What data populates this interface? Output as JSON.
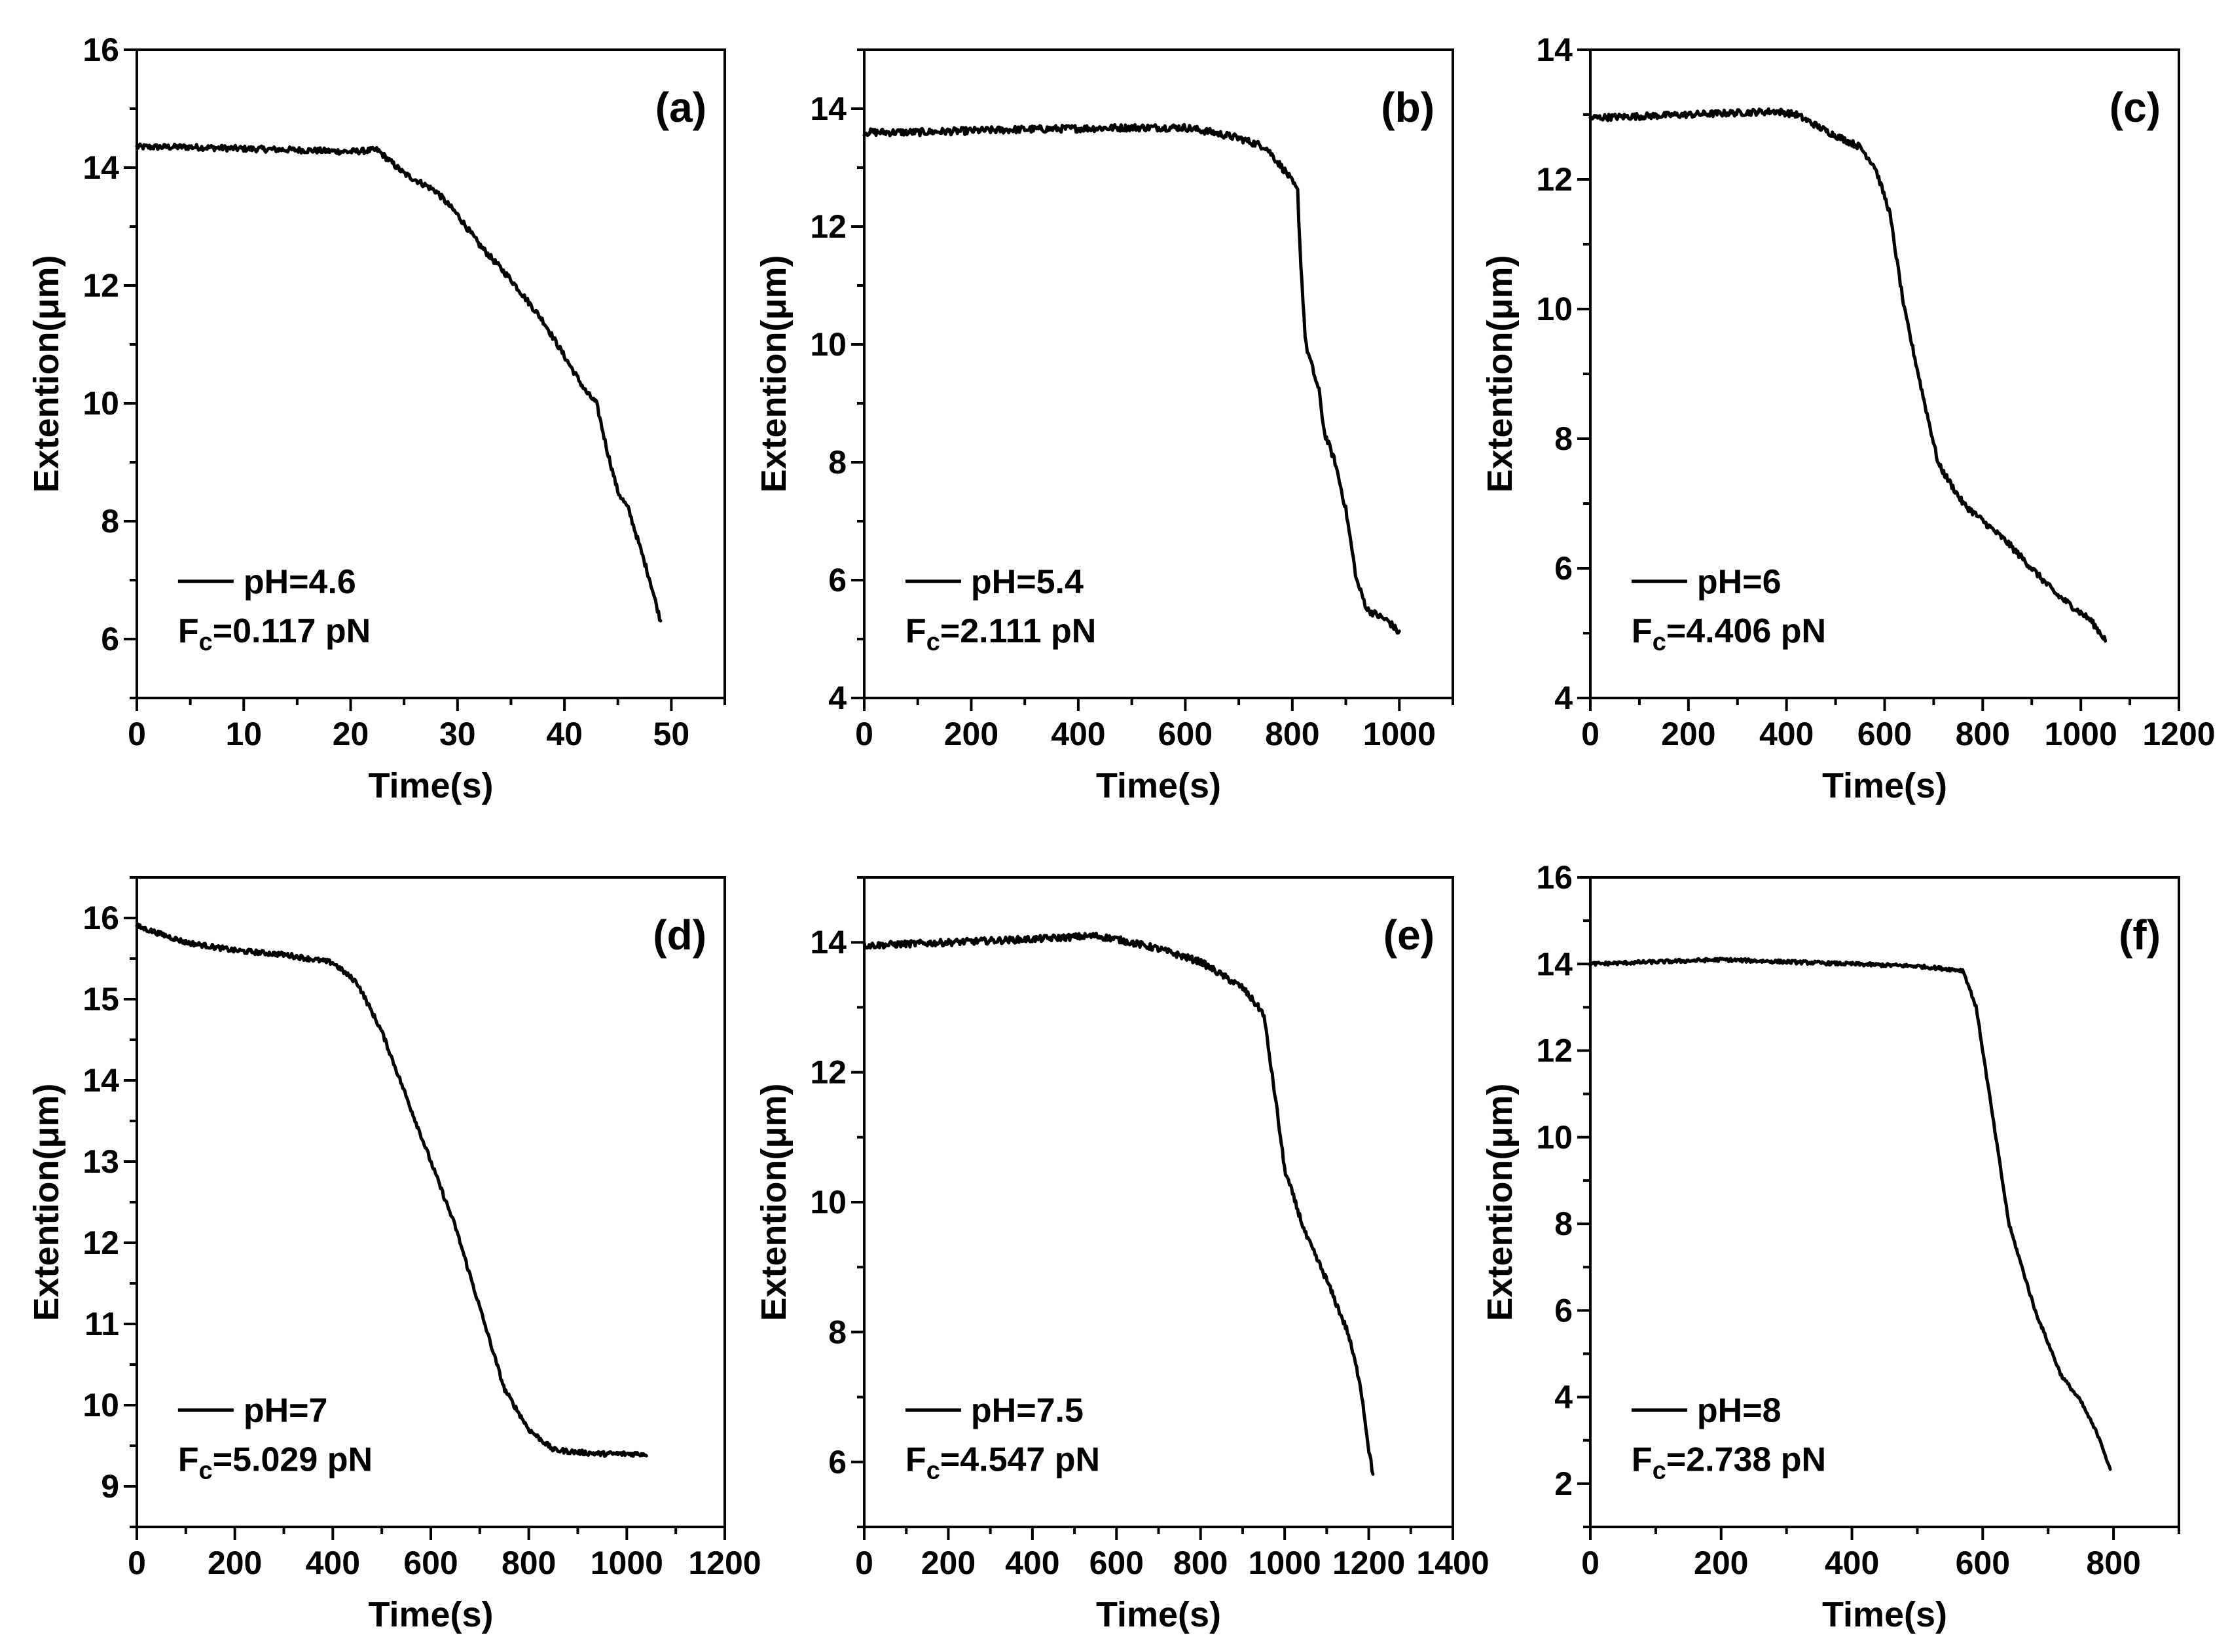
{
  "chart_data": [
    {
      "type": "line",
      "panel_label": "(a)",
      "xlabel": "Time(s)",
      "ylabel": "Extention(μm)",
      "xlim": [
        0,
        55
      ],
      "ylim": [
        5,
        16
      ],
      "xticks": [
        0,
        10,
        20,
        30,
        40,
        50
      ],
      "yticks": [
        6,
        8,
        10,
        12,
        14,
        16
      ],
      "legend": {
        "series": "pH=4.6",
        "force_prefix": "F",
        "force_sub": "c",
        "force_value": "=0.117 pN"
      },
      "series": [
        {
          "name": "pH=4.6",
          "noise": 0.05,
          "points": [
            [
              0,
              14.35
            ],
            [
              5,
              14.35
            ],
            [
              10,
              14.32
            ],
            [
              15,
              14.3
            ],
            [
              20,
              14.27
            ],
            [
              22.5,
              14.3
            ],
            [
              25,
              13.9
            ],
            [
              28,
              13.6
            ],
            [
              30,
              13.2
            ],
            [
              32,
              12.7
            ],
            [
              35,
              12.1
            ],
            [
              38,
              11.4
            ],
            [
              40,
              10.8
            ],
            [
              42,
              10.2
            ],
            [
              43,
              10.0
            ],
            [
              44,
              9.2
            ],
            [
              45,
              8.5
            ],
            [
              46,
              8.2
            ],
            [
              47,
              7.6
            ],
            [
              48,
              7.0
            ],
            [
              49,
              6.3
            ]
          ]
        }
      ]
    },
    {
      "type": "line",
      "panel_label": "(b)",
      "xlabel": "Time(s)",
      "ylabel": "Extention(μm)",
      "xlim": [
        0,
        1100
      ],
      "ylim": [
        4,
        15
      ],
      "xticks": [
        0,
        200,
        400,
        600,
        800,
        1000
      ],
      "yticks": [
        4,
        6,
        8,
        10,
        12,
        14
      ],
      "legend": {
        "series": "pH=5.4",
        "force_prefix": "F",
        "force_sub": "c",
        "force_value": "=2.111 pN"
      },
      "series": [
        {
          "name": "pH=5.4",
          "noise": 0.06,
          "points": [
            [
              0,
              13.6
            ],
            [
              100,
              13.6
            ],
            [
              300,
              13.65
            ],
            [
              500,
              13.68
            ],
            [
              600,
              13.68
            ],
            [
              650,
              13.6
            ],
            [
              700,
              13.5
            ],
            [
              750,
              13.35
            ],
            [
              790,
              12.9
            ],
            [
              810,
              12.6
            ],
            [
              815,
              11.5
            ],
            [
              825,
              10.0
            ],
            [
              850,
              9.2
            ],
            [
              860,
              8.5
            ],
            [
              880,
              8.0
            ],
            [
              900,
              7.2
            ],
            [
              920,
              6.0
            ],
            [
              940,
              5.5
            ],
            [
              980,
              5.3
            ],
            [
              1000,
              5.1
            ]
          ]
        }
      ]
    },
    {
      "type": "line",
      "panel_label": "(c)",
      "xlabel": "Time(s)",
      "ylabel": "Extention(μm)",
      "xlim": [
        0,
        1200
      ],
      "ylim": [
        4,
        14
      ],
      "xticks": [
        0,
        200,
        400,
        600,
        800,
        1000,
        1200
      ],
      "yticks": [
        4,
        6,
        8,
        10,
        12,
        14
      ],
      "legend": {
        "series": "pH=6",
        "force_prefix": "F",
        "force_sub": "c",
        "force_value": "=4.406 pN"
      },
      "series": [
        {
          "name": "pH=6",
          "noise": 0.05,
          "points": [
            [
              0,
              12.95
            ],
            [
              200,
              13.0
            ],
            [
              380,
              13.05
            ],
            [
              420,
              13.0
            ],
            [
              480,
              12.75
            ],
            [
              550,
              12.5
            ],
            [
              580,
              12.2
            ],
            [
              610,
              11.5
            ],
            [
              640,
              10.0
            ],
            [
              680,
              8.6
            ],
            [
              710,
              7.6
            ],
            [
              760,
              7.0
            ],
            [
              850,
              6.4
            ],
            [
              950,
              5.6
            ],
            [
              1020,
              5.2
            ],
            [
              1050,
              4.9
            ]
          ]
        }
      ]
    },
    {
      "type": "line",
      "panel_label": "(d)",
      "xlabel": "Time(s)",
      "ylabel": "Extention(μm)",
      "xlim": [
        0,
        1200
      ],
      "ylim": [
        8.5,
        16.5
      ],
      "xticks": [
        0,
        200,
        400,
        600,
        800,
        1000,
        1200
      ],
      "yticks": [
        9,
        10,
        11,
        12,
        13,
        14,
        15,
        16
      ],
      "legend": {
        "series": "pH=7",
        "force_prefix": "F",
        "force_sub": "c",
        "force_value": "=5.029 pN"
      },
      "series": [
        {
          "name": "pH=7",
          "noise": 0.03,
          "points": [
            [
              0,
              15.9
            ],
            [
              100,
              15.7
            ],
            [
              200,
              15.6
            ],
            [
              300,
              15.55
            ],
            [
              400,
              15.45
            ],
            [
              450,
              15.2
            ],
            [
              500,
              14.6
            ],
            [
              550,
              13.8
            ],
            [
              600,
              13.0
            ],
            [
              650,
              12.2
            ],
            [
              700,
              11.2
            ],
            [
              750,
              10.2
            ],
            [
              800,
              9.7
            ],
            [
              850,
              9.45
            ],
            [
              900,
              9.42
            ],
            [
              950,
              9.4
            ],
            [
              1000,
              9.4
            ],
            [
              1040,
              9.4
            ]
          ]
        }
      ]
    },
    {
      "type": "line",
      "panel_label": "(e)",
      "xlabel": "Time(s)",
      "ylabel": "Extention(μm)",
      "xlim": [
        0,
        1400
      ],
      "ylim": [
        5,
        15
      ],
      "xticks": [
        0,
        200,
        400,
        600,
        800,
        1000,
        1200,
        1400
      ],
      "yticks": [
        6,
        8,
        10,
        12,
        14
      ],
      "legend": {
        "series": "pH=7.5",
        "force_prefix": "F",
        "force_sub": "c",
        "force_value": "=4.547 pN"
      },
      "series": [
        {
          "name": "pH=7.5",
          "noise": 0.05,
          "points": [
            [
              0,
              13.95
            ],
            [
              200,
              14.0
            ],
            [
              400,
              14.05
            ],
            [
              550,
              14.1
            ],
            [
              600,
              14.05
            ],
            [
              700,
              13.9
            ],
            [
              800,
              13.7
            ],
            [
              900,
              13.3
            ],
            [
              950,
              12.9
            ],
            [
              980,
              11.5
            ],
            [
              1000,
              10.5
            ],
            [
              1050,
              9.5
            ],
            [
              1100,
              8.8
            ],
            [
              1150,
              8.0
            ],
            [
              1180,
              7.2
            ],
            [
              1200,
              6.2
            ],
            [
              1210,
              5.8
            ]
          ]
        }
      ]
    },
    {
      "type": "line",
      "panel_label": "(f)",
      "xlabel": "Time(s)",
      "ylabel": "Extention(μm)",
      "xlim": [
        0,
        900
      ],
      "ylim": [
        1,
        16
      ],
      "xticks": [
        0,
        200,
        400,
        600,
        800
      ],
      "yticks": [
        2,
        4,
        6,
        8,
        10,
        12,
        14,
        16
      ],
      "legend": {
        "series": "pH=8",
        "force_prefix": "F",
        "force_sub": "c",
        "force_value": "=2.738 pN"
      },
      "series": [
        {
          "name": "pH=8",
          "noise": 0.04,
          "points": [
            [
              0,
              14.0
            ],
            [
              100,
              14.05
            ],
            [
              200,
              14.1
            ],
            [
              300,
              14.05
            ],
            [
              400,
              14.0
            ],
            [
              500,
              13.95
            ],
            [
              570,
              13.85
            ],
            [
              590,
              13.0
            ],
            [
              610,
              11.0
            ],
            [
              640,
              8.0
            ],
            [
              680,
              6.0
            ],
            [
              720,
              4.5
            ],
            [
              750,
              3.9
            ],
            [
              780,
              3.0
            ],
            [
              795,
              2.3
            ]
          ]
        }
      ]
    }
  ]
}
